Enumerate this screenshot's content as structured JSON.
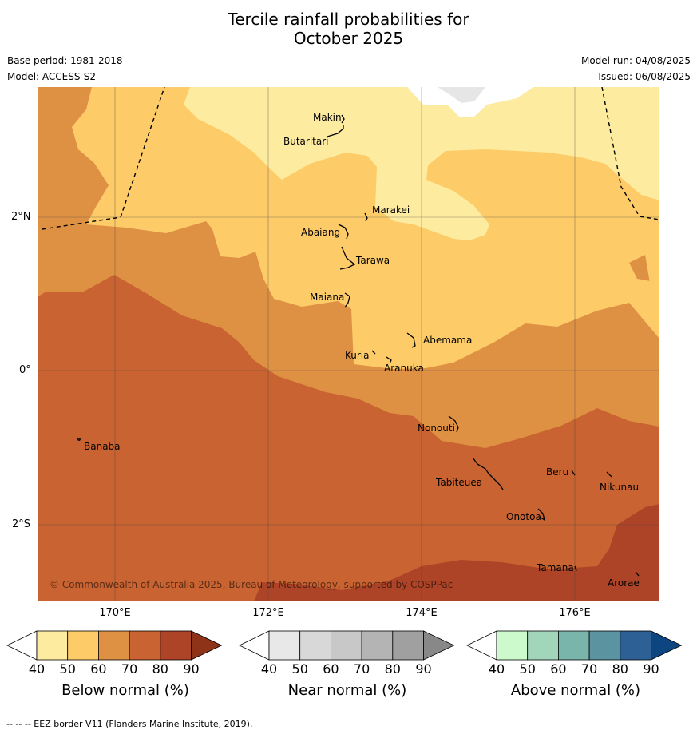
{
  "title": {
    "line1": "Tercile rainfall probabilities for",
    "line2": "October 2025"
  },
  "meta": {
    "base_period": "Base period: 1981-2018",
    "model": "Model: ACCESS-S2",
    "model_run": "Model run: 04/08/2025",
    "issued": "Issued: 06/08/2025"
  },
  "map": {
    "copyright": "© Commonwealth of Australia 2025, Bureau of Meteorology, supported by COSPPac",
    "lat_labels": [
      "2°N",
      "0°",
      "2°S"
    ],
    "lon_labels": [
      "170°E",
      "172°E",
      "174°E",
      "176°E"
    ],
    "places": [
      {
        "name": "Makin"
      },
      {
        "name": "Butaritari"
      },
      {
        "name": "Marakei"
      },
      {
        "name": "Abaiang"
      },
      {
        "name": "Tarawa"
      },
      {
        "name": "Maiana"
      },
      {
        "name": "Abemama"
      },
      {
        "name": "Kuria"
      },
      {
        "name": "Aranuka"
      },
      {
        "name": "Nonouti"
      },
      {
        "name": "Banaba"
      },
      {
        "name": "Tabiteuea"
      },
      {
        "name": "Beru"
      },
      {
        "name": "Nikunau"
      },
      {
        "name": "Onotoa"
      },
      {
        "name": "Tamana"
      },
      {
        "name": "Arorae"
      }
    ],
    "category_colors": {
      "below_50": "#fdeb9f",
      "below_60": "#fdcb68",
      "below_70": "#df9143",
      "below_80": "#c96331",
      "below_90": "#ad4427"
    }
  },
  "colorbars": [
    {
      "label": "Below normal (%)",
      "ticks": [
        "40",
        "50",
        "60",
        "70",
        "80",
        "90"
      ],
      "colors": [
        "#fdeb9f",
        "#fdcb68",
        "#df9143",
        "#c96331",
        "#ad4427"
      ],
      "extend_color": "#8e3218"
    },
    {
      "label": "Near normal (%)",
      "ticks": [
        "40",
        "50",
        "60",
        "70",
        "80",
        "90"
      ],
      "colors": [
        "#e8e8e8",
        "#d8d8d8",
        "#c8c8c8",
        "#b4b4b4",
        "#a0a0a0"
      ],
      "extend_color": "#888888"
    },
    {
      "label": "Above normal (%)",
      "ticks": [
        "40",
        "50",
        "60",
        "70",
        "80",
        "90"
      ],
      "colors": [
        "#ccfacc",
        "#a2d6bb",
        "#7ab5ac",
        "#5b93a0",
        "#2d6196"
      ],
      "extend_color": "#0d4580"
    }
  ],
  "footnote": "--  --  -- EEZ border V11 (Flanders Marine Institute, 2019)."
}
